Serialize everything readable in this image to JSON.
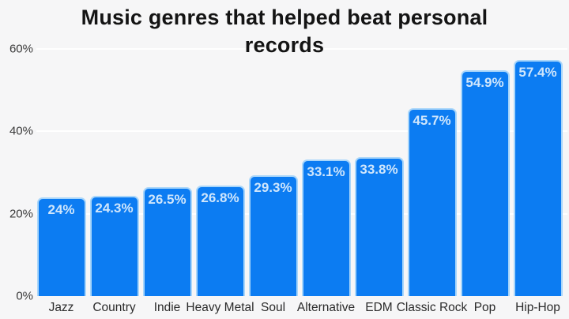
{
  "chart_data": {
    "type": "bar",
    "title": "Music genres that helped beat personal records",
    "categories": [
      "Jazz",
      "Country",
      "Indie",
      "Heavy Metal",
      "Soul",
      "Alternative",
      "EDM",
      "Classic Rock",
      "Pop",
      "Hip-Hop"
    ],
    "values": [
      24,
      24.3,
      26.5,
      26.8,
      29.3,
      33.1,
      33.8,
      45.7,
      54.9,
      57.4
    ],
    "value_labels": [
      "24%",
      "24.3%",
      "26.5%",
      "26.8%",
      "29.3%",
      "33.1%",
      "33.8%",
      "45.7%",
      "54.9%",
      "57.4%"
    ],
    "xlabel": "",
    "ylabel": "",
    "ylim": [
      0,
      60
    ],
    "yticks": [
      0,
      20,
      40,
      60
    ],
    "ytick_labels": [
      "0%",
      "20%",
      "40%",
      "60%"
    ],
    "grid": "horizontal",
    "legend": "none",
    "colors": {
      "background": "#f6f6f7",
      "bar_fill": "#0c7cf2",
      "bar_border": "#a9d6fa",
      "bar_value_text": "#cfe6fc",
      "gridline": "#ffffff",
      "axis_text": "#3a3a3a",
      "title_text": "#141414"
    }
  }
}
